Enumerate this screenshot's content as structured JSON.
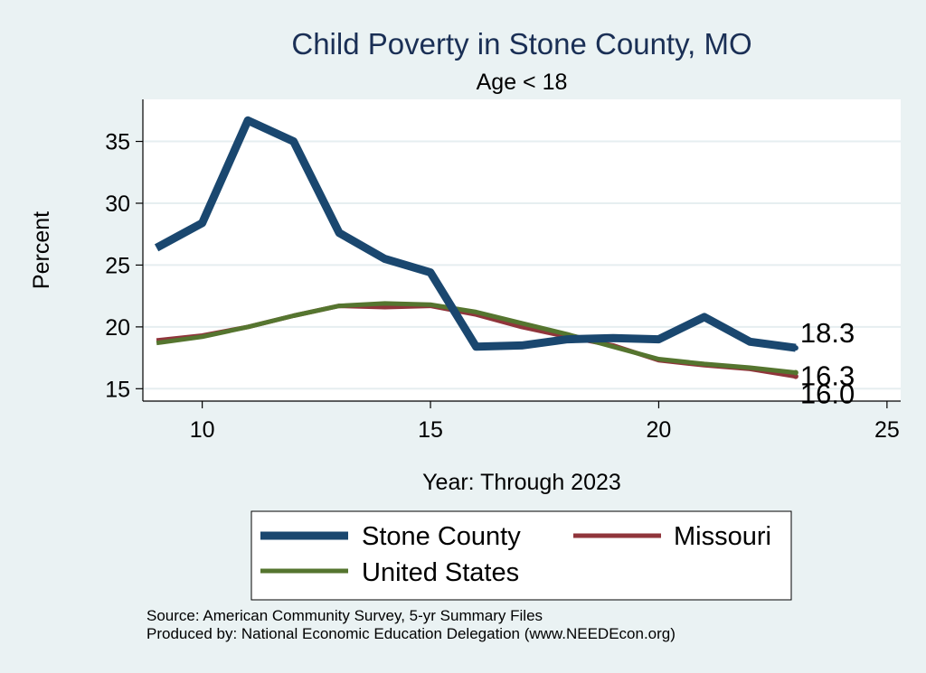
{
  "chart_data": {
    "type": "line",
    "title": "Child Poverty in Stone County, MO",
    "subtitle": "Age < 18",
    "xlabel": "Year: Through 2023",
    "ylabel": "Percent",
    "xlim": [
      8.7,
      25.3
    ],
    "ylim": [
      14,
      38.4
    ],
    "xticks": [
      10,
      15,
      20,
      25
    ],
    "yticks": [
      15,
      20,
      25,
      30,
      35
    ],
    "grid": true,
    "legend_position": "bottom",
    "x": [
      9,
      10,
      11,
      12,
      13,
      14,
      15,
      16,
      17,
      18,
      19,
      20,
      21,
      22,
      23
    ],
    "series": [
      {
        "name": "Stone County",
        "color": "#1a476f",
        "width": "thick",
        "values": [
          26.4,
          28.4,
          36.7,
          35.0,
          27.6,
          25.5,
          24.4,
          18.4,
          18.5,
          19.0,
          19.1,
          19.0,
          20.8,
          18.8,
          18.3
        ],
        "end_label": "18.3"
      },
      {
        "name": "Missouri",
        "color": "#90353b",
        "width": "thin",
        "values": [
          18.9,
          19.3,
          20.0,
          20.9,
          21.7,
          21.6,
          21.7,
          21.0,
          20.0,
          19.2,
          18.5,
          17.3,
          16.9,
          16.6,
          16.0
        ],
        "end_label": "16.0"
      },
      {
        "name": "United States",
        "color": "#55752f",
        "width": "thin",
        "values": [
          18.7,
          19.2,
          20.0,
          20.9,
          21.7,
          21.9,
          21.8,
          21.2,
          20.3,
          19.4,
          18.4,
          17.4,
          17.0,
          16.7,
          16.3
        ],
        "end_label": "16.3"
      }
    ]
  },
  "source_note": "Source: American Community Survey, 5-yr Summary Files",
  "produced_note": "Produced by: National Economic Education Delegation (www.NEEDEcon.org)"
}
